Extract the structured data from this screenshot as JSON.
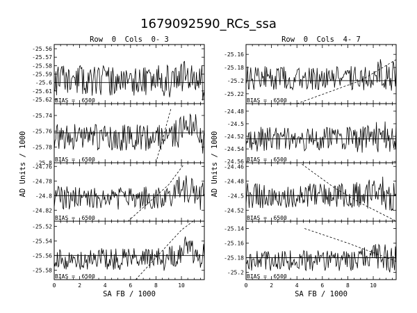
{
  "title": "1679092590_RCs_ssa",
  "columns": [
    {
      "heading": "Row  0  Cols  0- 3"
    },
    {
      "heading": "Row  0  Cols  4- 7"
    }
  ],
  "xlabel": "SA FB / 1000",
  "ylabel": "AD Units / 1000",
  "chart_data": {
    "type": "line",
    "x_range": [
      0,
      11.8
    ],
    "x_ticks": [
      "0",
      "2",
      "4",
      "6",
      "8",
      "10"
    ],
    "x_tick_values": [
      0,
      2,
      4,
      6,
      8,
      10
    ],
    "panels": [
      {
        "id": "p0",
        "col": 0,
        "row": 0,
        "bias_label": "BIAS =  6500",
        "ylim": [
          -25.625,
          -25.555
        ],
        "yticks": [
          -25.56,
          -25.57,
          -25.58,
          -25.59,
          -25.6,
          -25.61,
          -25.62
        ],
        "ytick_labels": [
          "-25.56",
          "-25.57",
          "-25.58",
          "-25.59",
          "-25.6",
          "-25.61",
          "-25.62"
        ],
        "ref_y": -25.6,
        "base": -25.598,
        "amp": 0.018,
        "growth": 0.004,
        "seed": 11,
        "dashed": []
      },
      {
        "id": "p1",
        "col": 0,
        "row": 1,
        "bias_label": "BIAS =  6500",
        "ylim": [
          -25.8,
          -25.725
        ],
        "yticks": [
          -25.74,
          -25.76,
          -25.78,
          -25.8
        ],
        "ytick_labels": [
          "-25.74",
          "-25.76",
          "-25.78",
          "-25.8"
        ],
        "ref_y": -25.762,
        "base": -25.768,
        "amp": 0.017,
        "growth": 0.01,
        "seed": 23,
        "dashed": [
          [
            8.0,
            -25.8
          ],
          [
            9.2,
            -25.73
          ]
        ]
      },
      {
        "id": "p2",
        "col": 0,
        "row": 2,
        "bias_label": "BIAS =  6500",
        "ylim": [
          -24.835,
          -24.755
        ],
        "yticks": [
          -24.76,
          -24.78,
          -24.8,
          -24.82
        ],
        "ytick_labels": [
          "-24.76",
          "-24.78",
          "-24.8",
          "-24.82"
        ],
        "ref_y": -24.8,
        "base": -24.803,
        "amp": 0.016,
        "growth": 0.014,
        "seed": 37,
        "dashed": [
          [
            5.8,
            -24.835
          ],
          [
            9.0,
            -24.785
          ],
          [
            10.2,
            -24.757
          ]
        ]
      },
      {
        "id": "p3",
        "col": 0,
        "row": 3,
        "bias_label": "BIAS =  6500",
        "ylim": [
          -25.593,
          -25.513
        ],
        "yticks": [
          -25.52,
          -25.54,
          -25.56,
          -25.58
        ],
        "ytick_labels": [
          "-25.52",
          "-25.54",
          "-25.56",
          "-25.58"
        ],
        "ref_y": -25.56,
        "base": -25.565,
        "amp": 0.015,
        "growth": 0.012,
        "seed": 41,
        "dashed": [
          [
            6.4,
            -25.593
          ],
          [
            10.0,
            -25.525
          ],
          [
            11.0,
            -25.512
          ]
        ]
      },
      {
        "id": "p4",
        "col": 1,
        "row": 0,
        "bias_label": "BIAS =  6500",
        "ylim": [
          -25.235,
          -25.145
        ],
        "yticks": [
          -25.16,
          -25.18,
          -25.2,
          -25.22
        ],
        "ytick_labels": [
          "-25.16",
          "-25.18",
          "-25.2",
          "-25.22"
        ],
        "ref_y": -25.2,
        "base": -25.196,
        "amp": 0.018,
        "growth": 0.006,
        "seed": 53,
        "dashed": [
          [
            4.0,
            -25.235
          ],
          [
            9.0,
            -25.2
          ],
          [
            11.8,
            -25.168
          ]
        ]
      },
      {
        "id": "p5",
        "col": 1,
        "row": 1,
        "bias_label": "BIAS =  6500",
        "ylim": [
          -24.562,
          -24.468
        ],
        "yticks": [
          -24.48,
          -24.5,
          -24.52,
          -24.54,
          -24.56
        ],
        "ytick_labels": [
          "-24.48",
          "-24.5",
          "-24.52",
          "-24.54",
          "-24.56"
        ],
        "ref_y": -24.524,
        "base": -24.525,
        "amp": 0.02,
        "growth": 0.004,
        "seed": 67,
        "dashed": []
      },
      {
        "id": "p6",
        "col": 1,
        "row": 2,
        "bias_label": "BIAS =  6500",
        "ylim": [
          -24.535,
          -24.455
        ],
        "yticks": [
          -24.46,
          -24.48,
          -24.5,
          -24.52
        ],
        "ytick_labels": [
          "-24.46",
          "-24.48",
          "-24.5",
          "-24.52"
        ],
        "ref_y": -24.5,
        "base": -24.5,
        "amp": 0.017,
        "growth": 0.004,
        "seed": 79,
        "dashed": [
          [
            4.4,
            -24.457
          ],
          [
            7.0,
            -24.49
          ],
          [
            9.0,
            -24.51
          ],
          [
            11.8,
            -24.535
          ]
        ]
      },
      {
        "id": "p7",
        "col": 1,
        "row": 3,
        "bias_label": "BIAS =  6500",
        "ylim": [
          -25.21,
          -25.13
        ],
        "yticks": [
          -25.14,
          -25.16,
          -25.18,
          -25.2
        ],
        "ytick_labels": [
          "-25.14",
          "-25.16",
          "-25.18",
          "-25.2"
        ],
        "ref_y": -25.18,
        "base": -25.184,
        "amp": 0.014,
        "growth": 0.006,
        "seed": 83,
        "dashed": [
          [
            4.6,
            -25.14
          ],
          [
            8.0,
            -25.16
          ],
          [
            11.8,
            -25.185
          ]
        ]
      }
    ]
  }
}
